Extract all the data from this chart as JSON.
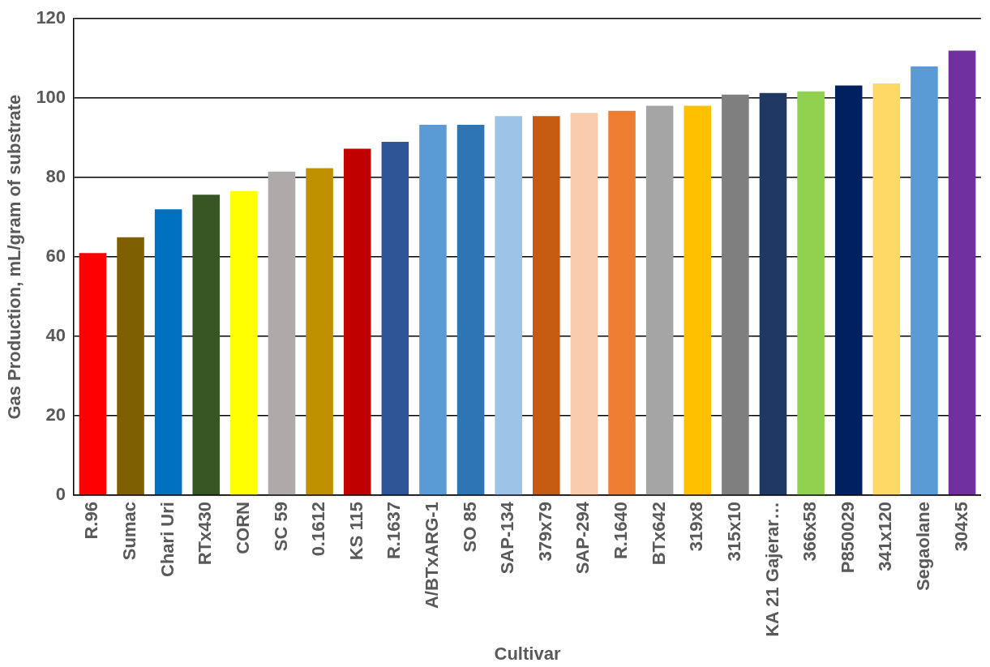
{
  "chart_data": {
    "type": "bar",
    "xlabel": "Cultivar",
    "ylabel": "Gas Production, mL/gram of substrate",
    "categories": [
      "R.96",
      "Sumac",
      "Chari Uri",
      "RTx430",
      "CORN",
      "SC 59",
      "0.1612",
      "KS 115",
      "R.1637",
      "A/BTxARG-1",
      "SO 85",
      "SAP-134",
      "379x79",
      "SAP-294",
      "R.1640",
      "BTx642",
      "319x8",
      "315x10",
      "KA 21 Gajerar…",
      "366x58",
      "P850029",
      "341x120",
      "Segaolane",
      "304x5"
    ],
    "values": [
      61,
      65,
      72,
      75.7,
      76.6,
      81.5,
      82.4,
      87.3,
      89,
      93.3,
      93.3,
      95.5,
      95.5,
      96.3,
      96.8,
      98.1,
      98.1,
      100.9,
      101.3,
      101.7,
      103.2,
      103.7,
      108,
      112
    ],
    "colors": [
      "#ff0000",
      "#7f6000",
      "#0070c0",
      "#375623",
      "#ffff00",
      "#aeaaaa",
      "#bf9000",
      "#c00000",
      "#2f5597",
      "#5b9bd5",
      "#2e75b6",
      "#9dc3e6",
      "#c55a11",
      "#f8cbad",
      "#ed7d31",
      "#a5a5a5",
      "#ffc000",
      "#7f7f7f",
      "#203864",
      "#92d050",
      "#002060",
      "#ffd966",
      "#5b9bd5",
      "#7030a0"
    ],
    "ylim": [
      0,
      120
    ],
    "yticks": [
      0,
      20,
      40,
      60,
      80,
      100,
      120
    ],
    "grid": "y",
    "legend": false
  }
}
